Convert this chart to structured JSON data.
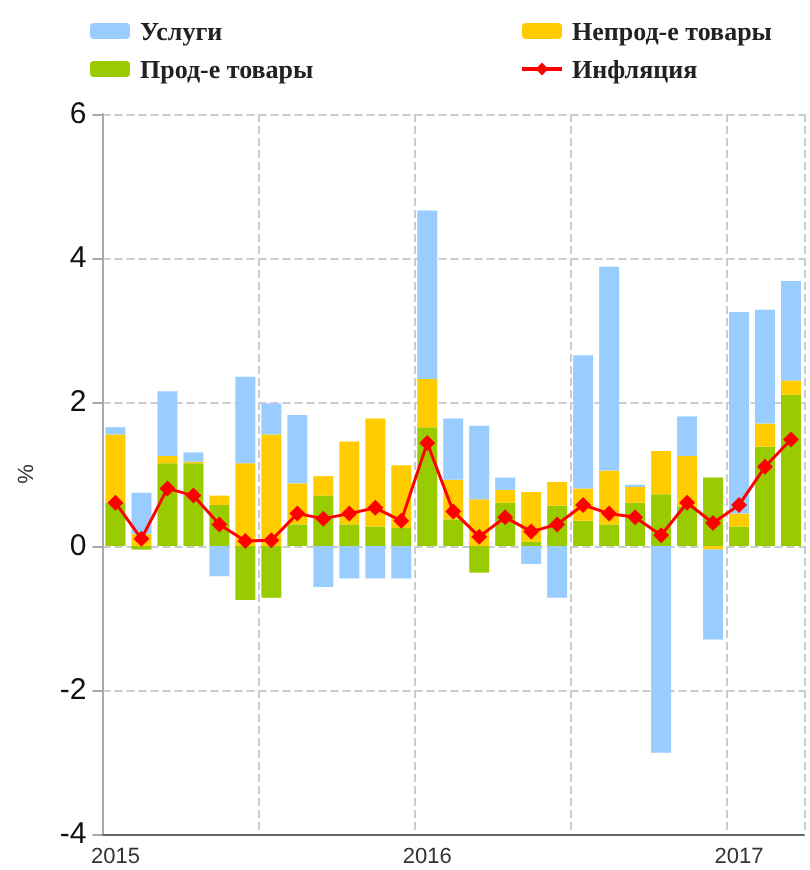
{
  "chart_data": {
    "type": "bar",
    "stacked": true,
    "ylabel": "%",
    "categories": [
      "2015",
      null,
      null,
      null,
      null,
      null,
      null,
      null,
      null,
      null,
      null,
      null,
      "2016",
      null,
      null,
      null,
      null,
      null,
      null,
      null,
      null,
      null,
      null,
      null,
      "2017",
      null,
      null
    ],
    "series": [
      {
        "name": "Прод-е товары",
        "color": "#99cc00",
        "values": [
          0.6,
          -0.05,
          1.15,
          1.15,
          0.57,
          -0.75,
          -0.72,
          0.3,
          0.7,
          0.3,
          0.27,
          0.25,
          1.65,
          0.37,
          -0.37,
          0.6,
          0.06,
          0.56,
          0.35,
          0.3,
          0.6,
          0.72,
          0.55,
          0.95,
          0.27,
          1.38,
          2.1
        ]
      },
      {
        "name": "Непрод-е товары",
        "color": "#ffcc00",
        "values": [
          0.95,
          0.17,
          0.1,
          0.02,
          0.13,
          1.15,
          1.55,
          0.57,
          0.27,
          1.15,
          1.5,
          0.87,
          0.67,
          0.55,
          0.65,
          0.18,
          0.69,
          0.33,
          0.45,
          0.75,
          0.22,
          0.6,
          0.7,
          -0.05,
          0.18,
          0.32,
          0.2
        ]
      },
      {
        "name": "Услуги",
        "color": "#99ccff",
        "values": [
          0.1,
          0.57,
          0.9,
          0.13,
          -0.42,
          1.2,
          0.43,
          0.95,
          -0.57,
          -0.45,
          -0.45,
          -0.45,
          2.34,
          0.85,
          1.02,
          0.17,
          -0.25,
          -0.72,
          1.85,
          2.83,
          0.03,
          -2.87,
          0.55,
          -1.25,
          2.8,
          1.58,
          1.38
        ]
      },
      {
        "name": "Инфляция",
        "type": "line",
        "color": "#ff0000",
        "marker": "diamond",
        "values": [
          0.6,
          0.1,
          0.8,
          0.7,
          0.3,
          0.07,
          0.08,
          0.45,
          0.38,
          0.45,
          0.53,
          0.35,
          1.43,
          0.48,
          0.13,
          0.4,
          0.2,
          0.3,
          0.57,
          0.45,
          0.4,
          0.15,
          0.6,
          0.32,
          0.57,
          1.1,
          1.48
        ]
      }
    ],
    "ylim": [
      -4,
      6
    ],
    "yticks": [
      -4,
      -2,
      0,
      2,
      4,
      6
    ],
    "grid": true,
    "legend": "top"
  }
}
